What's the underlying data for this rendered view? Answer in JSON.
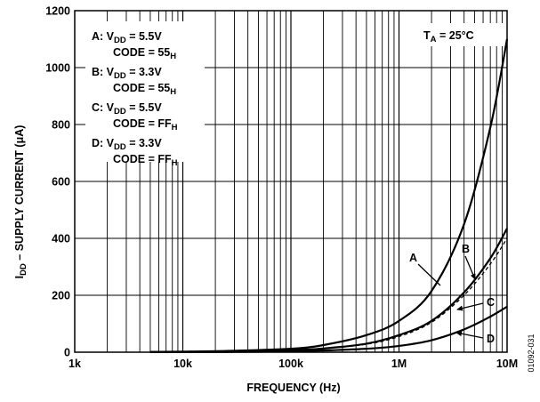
{
  "chart_data": {
    "type": "line",
    "xscale": "log",
    "xlim": [
      1000,
      10000000
    ],
    "ylim": [
      0,
      1200
    ],
    "xlabel": "FREQUENCY (Hz)",
    "ylabel": {
      "pre": "I",
      "sub": "DD",
      "post": " – SUPPLY CURRENT (μA)"
    },
    "x_ticks": [
      {
        "value": 1000,
        "label": "1k"
      },
      {
        "value": 10000,
        "label": "10k"
      },
      {
        "value": 100000,
        "label": "100k"
      },
      {
        "value": 1000000,
        "label": "1M"
      },
      {
        "value": 10000000,
        "label": "10M"
      }
    ],
    "y_ticks": [
      {
        "value": 0,
        "label": "0"
      },
      {
        "value": 200,
        "label": "200"
      },
      {
        "value": 400,
        "label": "400"
      },
      {
        "value": 600,
        "label": "600"
      },
      {
        "value": 800,
        "label": "800"
      },
      {
        "value": 1000,
        "label": "1000"
      },
      {
        "value": 1200,
        "label": "1200"
      }
    ],
    "grid": true,
    "temperature_label": {
      "pre": "T",
      "sub": "A",
      "post": " = 25°C"
    },
    "legend": {
      "placement": "top-left",
      "entries": [
        {
          "key": "A:",
          "vdd": "5.5V",
          "code": "55"
        },
        {
          "key": "B:",
          "vdd": "3.3V",
          "code": "55"
        },
        {
          "key": "C:",
          "vdd": "5.5V",
          "code": "FF"
        },
        {
          "key": "D:",
          "vdd": "3.3V",
          "code": "FF"
        }
      ],
      "vdd_label": "V",
      "vdd_sub": "DD",
      "code_label": "CODE = ",
      "code_sub": "H"
    },
    "series": [
      {
        "name": "A",
        "style": "solid",
        "x": [
          5000,
          10000,
          30000,
          100000,
          200000,
          500000,
          1000000,
          2000000,
          4000000,
          7000000,
          10000000
        ],
        "y": [
          1,
          2,
          5,
          12,
          25,
          60,
          110,
          215,
          450,
          790,
          1100
        ]
      },
      {
        "name": "B",
        "style": "dashed",
        "x": [
          5000,
          10000,
          30000,
          100000,
          200000,
          500000,
          1000000,
          2000000,
          4000000,
          7000000,
          10000000
        ],
        "y": [
          0.5,
          1,
          3,
          8,
          14,
          28,
          55,
          105,
          200,
          310,
          400
        ]
      },
      {
        "name": "C",
        "style": "solid",
        "x": [
          5000,
          10000,
          30000,
          100000,
          200000,
          500000,
          1000000,
          2000000,
          4000000,
          7000000,
          10000000
        ],
        "y": [
          0.5,
          1,
          3,
          7,
          13,
          30,
          60,
          110,
          210,
          330,
          435
        ]
      },
      {
        "name": "D",
        "style": "solid",
        "x": [
          5000,
          10000,
          30000,
          100000,
          200000,
          500000,
          1000000,
          2000000,
          4000000,
          7000000,
          10000000
        ],
        "y": [
          0.3,
          0.5,
          1,
          3,
          6,
          12,
          22,
          42,
          80,
          125,
          160
        ]
      }
    ],
    "curve_labels": [
      "A",
      "B",
      "C",
      "D"
    ],
    "doc_number": "01092-031"
  }
}
